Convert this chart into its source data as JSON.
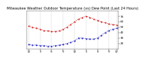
{
  "title": "Milwaukee Weather Outdoor Temperature (vs) Dew Point (Last 24 Hours)",
  "temp": [
    52,
    50,
    48,
    46,
    44,
    43,
    42,
    42,
    43,
    46,
    50,
    55,
    60,
    65,
    68,
    70,
    68,
    65,
    62,
    60,
    58,
    56,
    55,
    54
  ],
  "dew": [
    18,
    17,
    17,
    16,
    16,
    15,
    15,
    16,
    17,
    18,
    20,
    22,
    25,
    30,
    30,
    29,
    28,
    28,
    30,
    35,
    40,
    44,
    46,
    48
  ],
  "temp_color": "#cc0000",
  "dew_color": "#0000bb",
  "bg_color": "#ffffff",
  "grid_color": "#888888",
  "ylim_min": 10,
  "ylim_max": 80,
  "ytick_vals": [
    20,
    30,
    40,
    50,
    60,
    70
  ],
  "ytick_labels": [
    "20",
    "30",
    "40",
    "50",
    "60",
    "70"
  ],
  "x_tick_pos": [
    0,
    3,
    6,
    9,
    12,
    15,
    18,
    21,
    23
  ],
  "x_tick_labels": [
    "12",
    "3",
    "6",
    "9",
    "12",
    "3",
    "6",
    "9",
    "12"
  ],
  "title_fontsize": 3.8,
  "tick_fontsize": 3.0,
  "line_width": 0.7,
  "marker_size": 1.0
}
